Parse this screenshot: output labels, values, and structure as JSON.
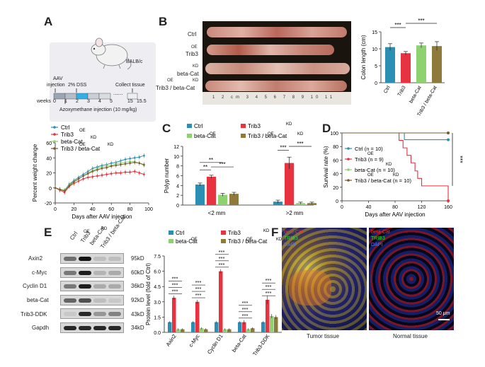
{
  "panels": {
    "a": "A",
    "b": "B",
    "c": "C",
    "d": "D",
    "e": "E",
    "f": "F"
  },
  "panel_a": {
    "mouse_label": "BALB/c",
    "aav": "AAV",
    "injection": "injection",
    "dss": "2% DSS",
    "collect": "Collect tissue",
    "weeks_label": "weeks",
    "weeks": [
      "0",
      "1",
      "2",
      "3",
      "4",
      "5",
      "15",
      "15.5"
    ],
    "dots": "......",
    "aom": "Azoxymethane injection (10 mg/kg)"
  },
  "panel_b": {
    "rows": [
      "Ctrl",
      "Trib3",
      "beta-Cat",
      "Trib3    / beta-Cat"
    ],
    "sup_oe": "OE",
    "sup_kd": "KD",
    "ruler": "1 2 cm 3 4 5 6 7 8 9 10 11"
  },
  "colors": {
    "ctrl": "#2b8fb3",
    "trib3": "#e6333f",
    "betacat": "#8ed26f",
    "combo": "#7b5a2e",
    "combo_fill": "#8e7a3a"
  },
  "chart_data": [
    {
      "id": "weight",
      "type": "line",
      "title": "",
      "xlabel": "Days after AAV injection",
      "ylabel": "Percent weight change",
      "xlim": [
        0,
        100
      ],
      "ylim": [
        -20,
        60
      ],
      "xticks": [
        "0",
        "20",
        "40",
        "60",
        "80",
        "100"
      ],
      "yticks": [
        "-20",
        "0",
        "20",
        "40",
        "60"
      ],
      "legend": [
        "Ctrl",
        "Trib3",
        "beta-Cat",
        "Trib3    / beta-Cat"
      ],
      "x": [
        0,
        5,
        10,
        15,
        20,
        25,
        30,
        35,
        40,
        45,
        50,
        55,
        60,
        65,
        70,
        75,
        80,
        85,
        90,
        95
      ],
      "series": [
        {
          "name": "Ctrl",
          "values": [
            0,
            -2,
            -3,
            5,
            10,
            14,
            18,
            22,
            26,
            28,
            30,
            31,
            33,
            34,
            36,
            38,
            39,
            40,
            41,
            43
          ]
        },
        {
          "name": "Trib3 OE",
          "values": [
            0,
            -3,
            -6,
            2,
            6,
            9,
            12,
            14,
            15,
            16,
            17,
            18,
            19,
            20,
            20,
            21,
            21,
            22,
            20,
            18
          ]
        },
        {
          "name": "beta-Cat KD",
          "values": [
            0,
            -2,
            -3,
            4,
            9,
            12,
            16,
            20,
            23,
            26,
            28,
            29,
            30,
            32,
            33,
            34,
            35,
            35,
            33,
            30
          ]
        },
        {
          "name": "Trib3 OE / beta-Cat KD",
          "values": [
            0,
            -2,
            -4,
            3,
            8,
            12,
            16,
            19,
            22,
            24,
            26,
            27,
            29,
            30,
            31,
            32,
            33,
            34,
            33,
            31
          ]
        }
      ]
    },
    {
      "id": "colon",
      "type": "bar",
      "title": "",
      "xlabel": "",
      "ylabel": "Colon length (cm)",
      "ylim": [
        0,
        15
      ],
      "yticks": [
        "0",
        "5",
        "10",
        "15"
      ],
      "categories": [
        "Ctrl",
        "Trib3",
        "beta-Cat",
        "Trib3    / beta-Cat"
      ],
      "values": [
        10.5,
        8.7,
        11.0,
        10.8
      ],
      "errors": [
        1.0,
        0.5,
        0.7,
        1.3
      ],
      "significance": [
        "***",
        "***"
      ]
    },
    {
      "id": "polyp",
      "type": "bar",
      "title": "",
      "xlabel": "",
      "ylabel": "Polyp number",
      "ylim": [
        0,
        12
      ],
      "yticks": [
        "0",
        "2",
        "4",
        "6",
        "8",
        "10",
        "12"
      ],
      "categories": [
        "<2 mm",
        ">2 mm"
      ],
      "legend": [
        "Ctrl",
        "Trib3",
        "beta-Cat",
        "Trib3    / beta-Cat"
      ],
      "series": [
        {
          "name": "Ctrl",
          "values": [
            4.2,
            0.7
          ]
        },
        {
          "name": "Trib3 OE",
          "values": [
            5.8,
            8.6
          ]
        },
        {
          "name": "beta-Cat KD",
          "values": [
            2.1,
            0.4
          ]
        },
        {
          "name": "Trib3 OE / beta-Cat KD",
          "values": [
            2.3,
            0.4
          ]
        }
      ],
      "errors": [
        [
          0.3,
          0.3
        ],
        [
          0.3,
          1.2
        ],
        [
          0.3,
          0.2
        ],
        [
          0.3,
          0.2
        ]
      ],
      "significance": [
        "**",
        "**",
        "***",
        "***",
        "***"
      ]
    },
    {
      "id": "survival",
      "type": "line",
      "title": "",
      "xlabel": "Days after AAV injection",
      "ylabel": "Survival rate (%)",
      "xlim": [
        0,
        160
      ],
      "ylim": [
        0,
        100
      ],
      "xticks": [
        "0",
        "40",
        "80",
        "120",
        "160"
      ],
      "yticks": [
        "0",
        "20",
        "40",
        "60",
        "80",
        "100"
      ],
      "legend": [
        "Ctrl   (n = 10)",
        "Trib3    (n = 9)",
        "beta-Cat  (n = 10)",
        "Trib3 / beta-Cat  (n = 10)"
      ],
      "series": [
        {
          "name": "Ctrl",
          "points": [
            [
              0,
              100
            ],
            [
              94,
              100
            ],
            [
              94,
              90
            ],
            [
              160,
              90
            ]
          ]
        },
        {
          "name": "Trib3 OE",
          "points": [
            [
              0,
              100
            ],
            [
              86,
              100
            ],
            [
              86,
              89
            ],
            [
              92,
              89
            ],
            [
              92,
              78
            ],
            [
              98,
              78
            ],
            [
              98,
              67
            ],
            [
              104,
              67
            ],
            [
              104,
              56
            ],
            [
              110,
              56
            ],
            [
              110,
              44
            ],
            [
              114,
              44
            ],
            [
              114,
              33
            ],
            [
              120,
              33
            ],
            [
              120,
              22
            ],
            [
              160,
              22
            ],
            [
              160,
              0
            ]
          ]
        },
        {
          "name": "beta-Cat KD",
          "points": [
            [
              0,
              100
            ],
            [
              160,
              100
            ]
          ]
        },
        {
          "name": "Trib3 OE / beta-Cat KD",
          "points": [
            [
              0,
              100
            ],
            [
              160,
              100
            ]
          ]
        }
      ],
      "significance": "***"
    },
    {
      "id": "protein",
      "type": "bar",
      "title": "",
      "xlabel": "",
      "ylabel": "Protein level (fold of Ctrl)",
      "ylim": [
        0,
        7.5
      ],
      "yticks": [
        "0.0",
        "1.5",
        "3.0",
        "4.5",
        "6.0",
        "7.5"
      ],
      "categories": [
        "Axin2",
        "c-Myc",
        "Cyclin D1",
        "beta-Cat",
        "Trib3-DDK"
      ],
      "legend": [
        "Ctrl",
        "Trib3",
        "beta-Cat",
        "Trib3    / beta-Cat"
      ],
      "series": [
        {
          "name": "Ctrl",
          "values": [
            1.0,
            1.0,
            1.0,
            1.0,
            1.0
          ]
        },
        {
          "name": "Trib3 OE",
          "values": [
            3.4,
            3.0,
            6.0,
            1.0,
            3.2
          ]
        },
        {
          "name": "beta-Cat KD",
          "values": [
            0.3,
            0.4,
            0.3,
            0.3,
            1.6
          ]
        },
        {
          "name": "Trib3 OE / beta-Cat KD",
          "values": [
            0.3,
            0.3,
            0.3,
            0.4,
            1.5
          ]
        }
      ],
      "errors": [
        [
          0.1,
          0.1,
          0.1,
          0.1,
          0.1
        ],
        [
          0.2,
          0.2,
          0.2,
          0.2,
          0.4
        ],
        [
          0.1,
          0.1,
          0.1,
          0.1,
          0.2
        ],
        [
          0.1,
          0.1,
          0.1,
          0.1,
          0.2
        ]
      ],
      "significance": "***"
    }
  ],
  "panel_e": {
    "lanes": [
      "Ctrl",
      "Trib3",
      "beta-Cat",
      "Trib3    / beta-Cat"
    ],
    "proteins": [
      "Axin2",
      "c-Myc",
      "Cyclin D1",
      "beta-Cat",
      "Trib3-DDK",
      "Gapdh"
    ],
    "sizes": [
      "95kD",
      "60kD",
      "36kD",
      "92kD",
      "43kD",
      "34kD"
    ]
  },
  "panel_f": {
    "tumor_labels": [
      "beta-Cat",
      "TRIB3",
      "DAPI"
    ],
    "normal_labels": [
      "beta-Cat",
      "TRIB3",
      "DAPI"
    ],
    "scale": "50 μm",
    "tumor": "Tumor tissue",
    "normal": "Normal tissue"
  }
}
